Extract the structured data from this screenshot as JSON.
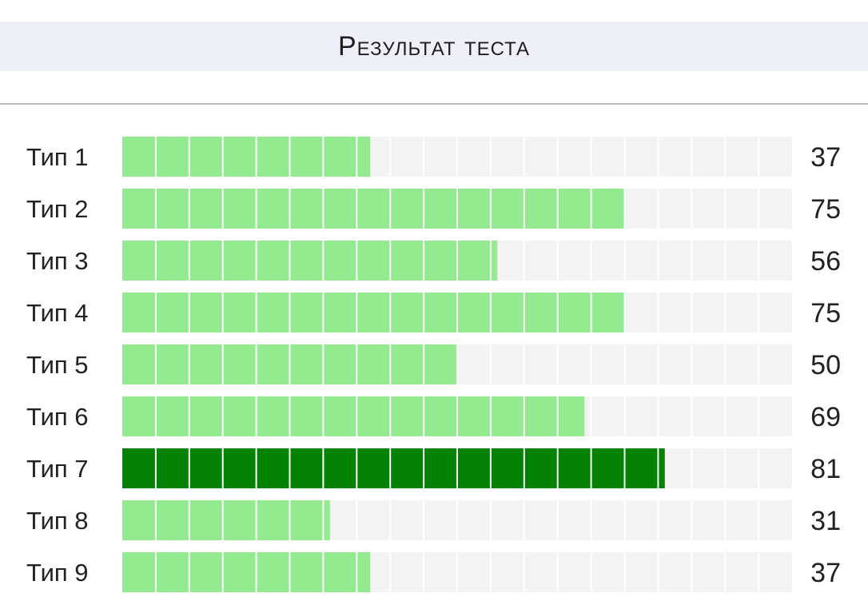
{
  "header": {
    "title": "Результат теста"
  },
  "chart_data": {
    "type": "bar",
    "orientation": "horizontal",
    "title": "Результат теста",
    "categories": [
      "Тип 1",
      "Тип 2",
      "Тип 3",
      "Тип 4",
      "Тип 5",
      "Тип 6",
      "Тип 7",
      "Тип 8",
      "Тип 9"
    ],
    "values": [
      37,
      75,
      56,
      75,
      50,
      69,
      81,
      31,
      37
    ],
    "xlim": [
      0,
      100
    ],
    "segments": 20,
    "highlight_index": 6,
    "colors": {
      "bar": "#93ea8f",
      "highlight": "#028102",
      "track": "#f3f3f3",
      "segment_divider": "#ffffff"
    }
  }
}
